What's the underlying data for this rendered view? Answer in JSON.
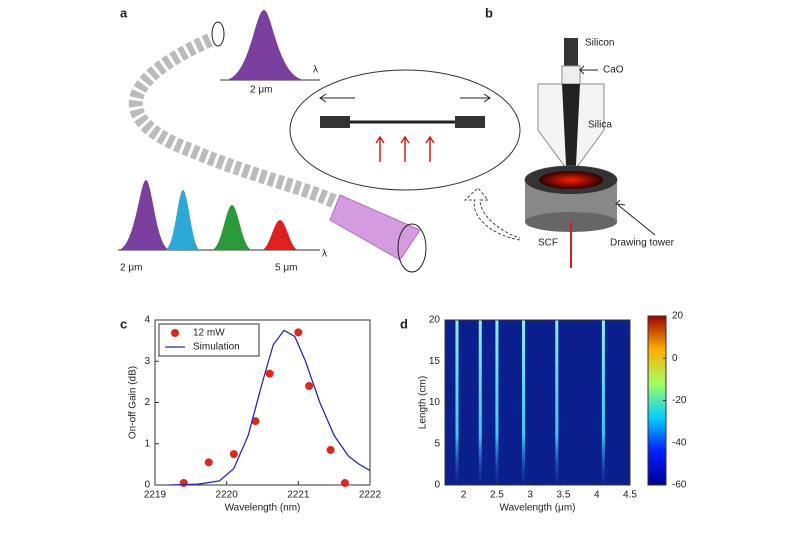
{
  "panels": {
    "a": "a",
    "b": "b",
    "c": "c",
    "d": "d"
  },
  "diagram_a": {
    "top_axis": "λ",
    "top_width": "2 μm",
    "bottom_axis": "λ",
    "bottom_left": "2 μm",
    "bottom_right": "5 μm"
  },
  "diagram_b": {
    "silicon": "Silicon",
    "cao": "CaO",
    "silica": "Silica",
    "scf": "SCF",
    "tower": "Drawing tower"
  },
  "chart_data": [
    {
      "type": "scatter",
      "xlabel": "Wavelength (nm)",
      "ylabel": "On-off Gain (dB)",
      "xlim": [
        2219,
        2222
      ],
      "xticks": [
        2219,
        2220,
        2221,
        2222
      ],
      "ylim": [
        0,
        4
      ],
      "yticks": [
        0,
        1,
        2,
        3,
        4
      ],
      "series": [
        {
          "name": "12 mW",
          "color": "#e0261f",
          "mode": "markers",
          "x": [
            2219.4,
            2219.75,
            2220.1,
            2220.4,
            2220.6,
            2221.0,
            2221.15,
            2221.45,
            2221.65
          ],
          "values": [
            0.05,
            0.55,
            0.75,
            1.55,
            2.7,
            3.7,
            2.4,
            0.85,
            0.05
          ]
        },
        {
          "name": "Simulation",
          "color": "#2b2f9e",
          "mode": "line",
          "x": [
            2219.2,
            2219.6,
            2219.9,
            2220.1,
            2220.3,
            2220.5,
            2220.65,
            2220.8,
            2220.95,
            2221.1,
            2221.3,
            2221.5,
            2221.7,
            2221.85,
            2222
          ],
          "values": [
            0,
            0.02,
            0.1,
            0.4,
            1.2,
            2.5,
            3.4,
            3.75,
            3.6,
            3.0,
            2.0,
            1.2,
            0.7,
            0.5,
            0.35
          ]
        }
      ]
    },
    {
      "type": "heatmap",
      "xlabel": "Wavelength (μm)",
      "ylabel": "Length (cm)",
      "xlim": [
        1.72,
        4.5
      ],
      "xticks": [
        2,
        2.5,
        3,
        3.5,
        4,
        4.5
      ],
      "ylim": [
        0,
        20
      ],
      "yticks": [
        0,
        5,
        10,
        15,
        20
      ],
      "x": [
        1.9,
        2.25,
        2.5,
        2.9,
        3.4,
        4.1
      ],
      "clim": [
        -60,
        20
      ],
      "cticks": [
        20,
        0,
        -20,
        -40,
        -60
      ]
    }
  ]
}
